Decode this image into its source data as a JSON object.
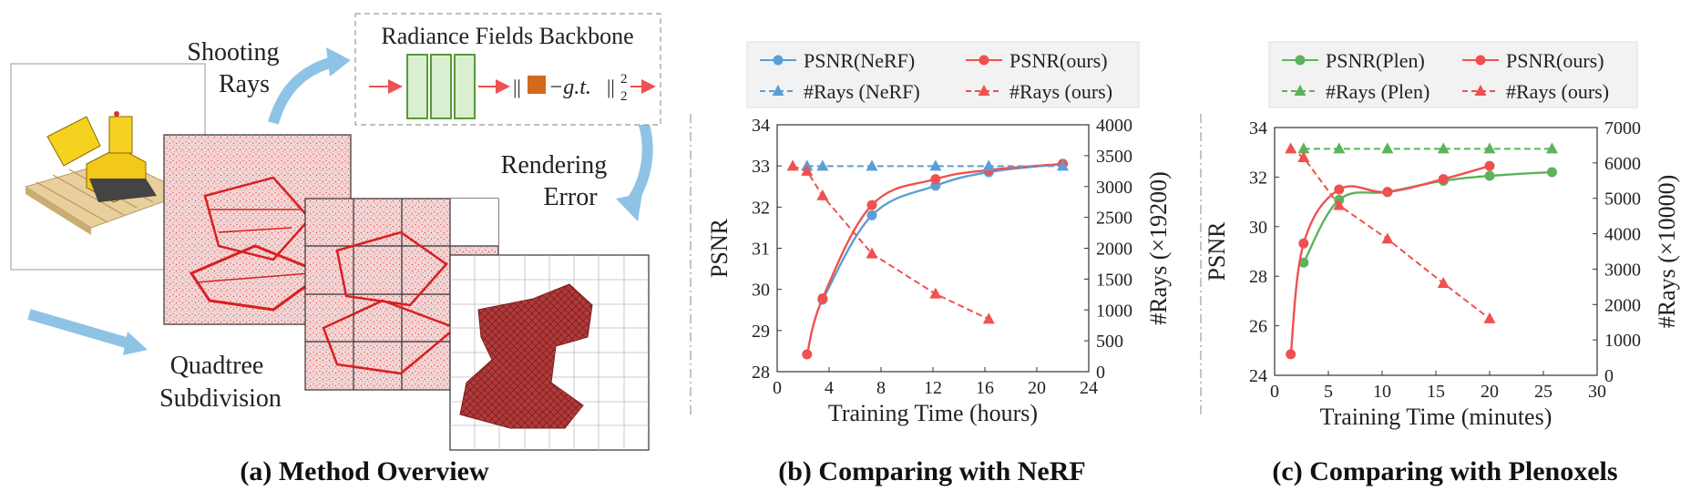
{
  "overview": {
    "shooting_rays": [
      "Shooting",
      "Rays"
    ],
    "backbone_title": "Radiance Fields Backbone",
    "loss_text": "−g.t.",
    "loss_norm_open": "||",
    "loss_norm_close": "||",
    "loss_sup": "2",
    "loss_sub": "2",
    "rendering_error": [
      "Rendering",
      "Error"
    ],
    "quadtree": [
      "Quadtree",
      "Subdivision"
    ],
    "caption": "(a) Method Overview"
  },
  "captions": {
    "b": "(b) Comparing with NeRF",
    "c": "(c) Comparing with Plenoxels"
  },
  "colors": {
    "blue": "#5a9fd4",
    "red": "#f05050",
    "green": "#5cb35c",
    "arrow_blue": "#8ec3e6",
    "backbone_green": "#5a9a3c",
    "backbone_fill": "#d9efd0",
    "orange": "#d2691e"
  },
  "chart_data": [
    {
      "id": "nerf",
      "type": "line",
      "xlabel": "Training Time (hours)",
      "ylabel": "PSNR",
      "y2label": "#Rays (×19200)",
      "xlim": [
        0,
        24
      ],
      "xticks": [
        0,
        4,
        8,
        12,
        16,
        20,
        24
      ],
      "ylim": [
        28,
        34
      ],
      "yticks": [
        28,
        29,
        30,
        31,
        32,
        33,
        34
      ],
      "y2lim": [
        0,
        4000
      ],
      "y2ticks": [
        0,
        500,
        1000,
        1500,
        2000,
        2500,
        3000,
        3500,
        4000
      ],
      "legend": [
        "PSNR(NeRF)",
        "PSNR(ours)",
        "#Rays (NeRF)",
        "#Rays (ours)"
      ],
      "series": [
        {
          "name": "PSNR(NeRF)",
          "axis": "left",
          "color": "blue",
          "marker": "circle",
          "dash": false,
          "x": [
            3.5,
            7.3,
            12.2,
            16.3,
            22.0
          ],
          "y": [
            29.75,
            31.8,
            32.52,
            32.85,
            33.05
          ]
        },
        {
          "name": "PSNR(ours)",
          "axis": "left",
          "color": "red",
          "marker": "circle",
          "dash": false,
          "x": [
            2.3,
            3.5,
            7.3,
            12.2,
            16.3,
            22.0
          ],
          "y": [
            28.42,
            29.78,
            32.05,
            32.68,
            32.9,
            33.05
          ]
        },
        {
          "name": "#Rays (NeRF)",
          "axis": "right",
          "color": "blue",
          "marker": "triangle",
          "dash": true,
          "x": [
            2.3,
            3.5,
            7.3,
            12.2,
            16.3,
            22.0
          ],
          "y": [
            3330,
            3330,
            3330,
            3330,
            3330,
            3330
          ]
        },
        {
          "name": "#Rays (ours)",
          "axis": "right",
          "color": "red",
          "marker": "triangle",
          "dash": true,
          "x": [
            1.2,
            2.3,
            3.5,
            7.3,
            12.2,
            16.3
          ],
          "y": [
            3330,
            3250,
            2850,
            1910,
            1260,
            850
          ]
        }
      ]
    },
    {
      "id": "plen",
      "type": "line",
      "xlabel": "Training Time (minutes)",
      "ylabel": "PSNR",
      "y2label": "#Rays (×10000)",
      "xlim": [
        0,
        30
      ],
      "xticks": [
        0,
        5,
        10,
        15,
        20,
        25,
        30
      ],
      "ylim": [
        24,
        34
      ],
      "yticks": [
        24,
        26,
        28,
        30,
        32,
        34
      ],
      "y2lim": [
        0,
        7000
      ],
      "y2ticks": [
        0,
        1000,
        2000,
        3000,
        4000,
        5000,
        6000,
        7000
      ],
      "legend": [
        "PSNR(Plen)",
        "PSNR(ours)",
        "#Rays (Plen)",
        "#Rays (ours)"
      ],
      "series": [
        {
          "name": "PSNR(Plen)",
          "axis": "left",
          "color": "green",
          "marker": "circle",
          "dash": false,
          "x": [
            2.7,
            6.0,
            10.5,
            15.7,
            20.0,
            25.8
          ],
          "y": [
            28.55,
            31.08,
            31.4,
            31.85,
            32.05,
            32.2
          ]
        },
        {
          "name": "PSNR(ours)",
          "axis": "left",
          "color": "red",
          "marker": "circle",
          "dash": false,
          "x": [
            1.5,
            2.7,
            6.0,
            10.5,
            15.7,
            20.0
          ],
          "y": [
            24.85,
            29.32,
            31.5,
            31.4,
            31.92,
            32.45
          ]
        },
        {
          "name": "#Rays (Plen)",
          "axis": "right",
          "color": "green",
          "marker": "triangle",
          "dash": true,
          "x": [
            2.7,
            6.0,
            10.5,
            15.7,
            20.0,
            25.8
          ],
          "y": [
            6400,
            6400,
            6400,
            6400,
            6400,
            6400
          ]
        },
        {
          "name": "#Rays (ours)",
          "axis": "right",
          "color": "red",
          "marker": "triangle",
          "dash": true,
          "x": [
            1.5,
            2.7,
            6.0,
            10.5,
            15.7,
            20.0
          ],
          "y": [
            6400,
            6150,
            4800,
            3850,
            2600,
            1600
          ]
        }
      ]
    }
  ]
}
